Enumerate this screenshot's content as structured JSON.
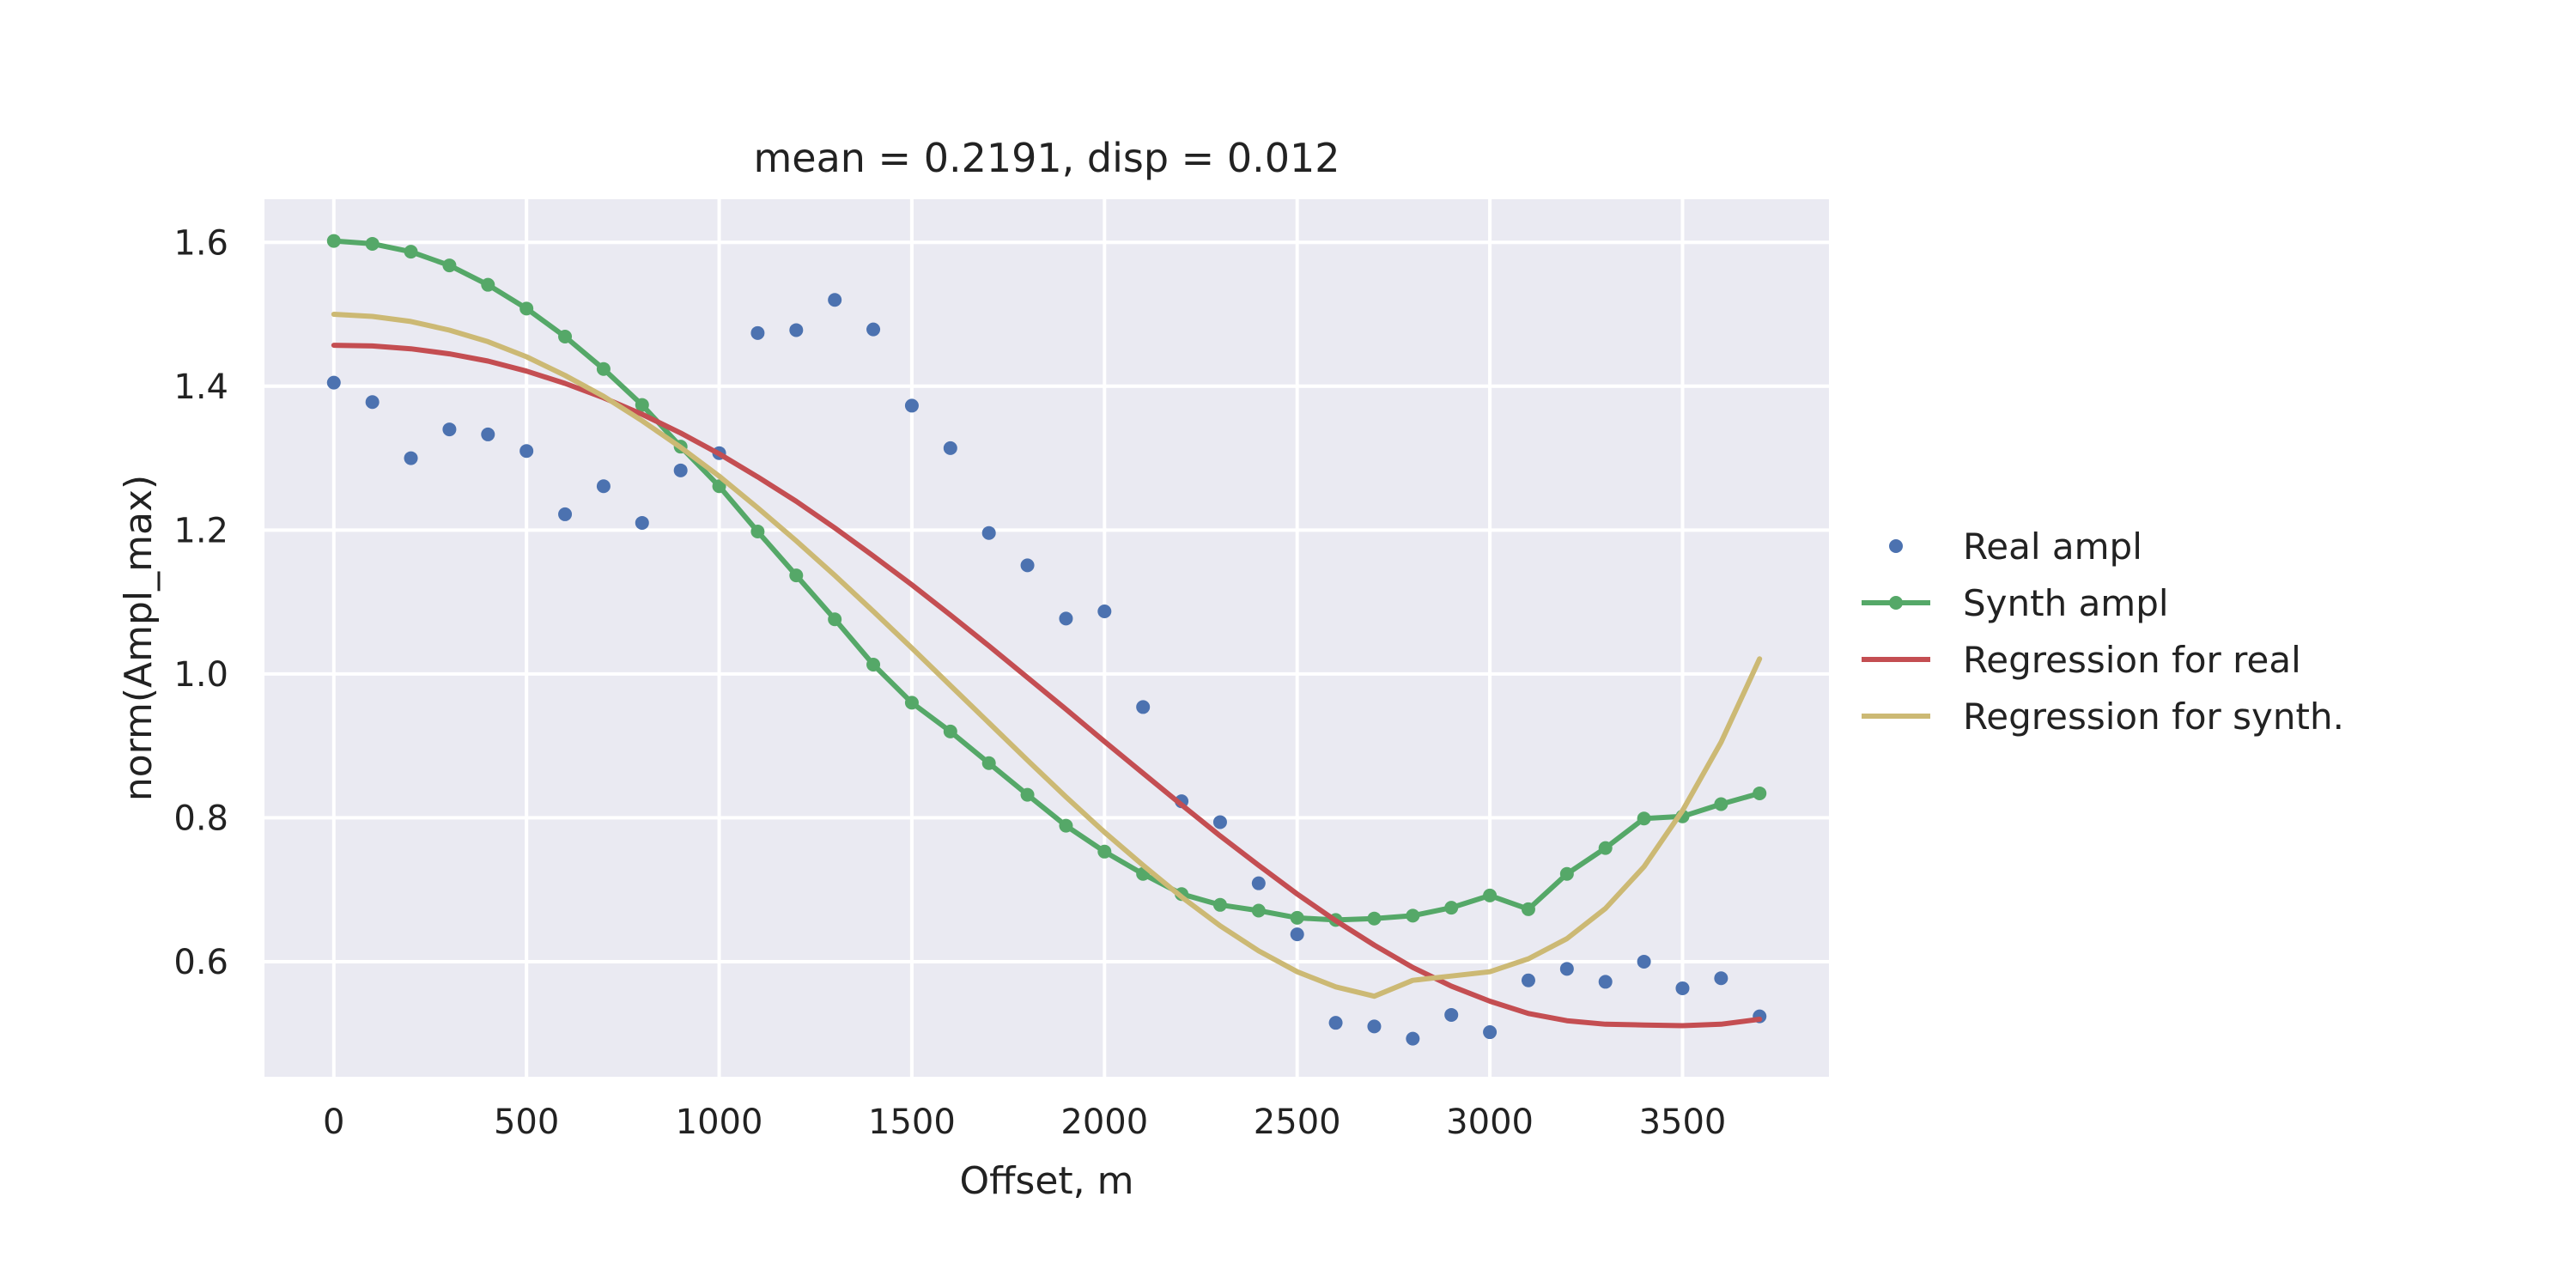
{
  "chart_data": {
    "type": "line",
    "title": "mean = 0.2191, disp = 0.012",
    "xlabel": "Offset, m",
    "ylabel": "norm(Ampl_max)",
    "xlim": [
      -180,
      3880
    ],
    "ylim": [
      0.44,
      1.66
    ],
    "xticks": [
      0,
      500,
      1000,
      1500,
      2000,
      2500,
      3000,
      3500
    ],
    "xtick_labels": [
      "0",
      "500",
      "1000",
      "1500",
      "2000",
      "2500",
      "3000",
      "3500"
    ],
    "yticks": [
      0.6,
      0.8,
      1.0,
      1.2,
      1.4,
      1.6
    ],
    "ytick_labels": [
      "0.6",
      "0.8",
      "1.0",
      "1.2",
      "1.4",
      "1.6"
    ],
    "grid": true,
    "legend_position": "right, outside plot",
    "x": [
      0,
      100,
      200,
      300,
      400,
      500,
      600,
      700,
      800,
      900,
      1000,
      1100,
      1200,
      1300,
      1400,
      1500,
      1600,
      1700,
      1800,
      1900,
      2000,
      2100,
      2200,
      2300,
      2400,
      2500,
      2600,
      2700,
      2800,
      2900,
      3000,
      3100,
      3200,
      3300,
      3400,
      3500,
      3600,
      3700
    ],
    "series": [
      {
        "name": "Real ampl",
        "style": "markers",
        "color": "#4c72b0",
        "values": [
          1.405,
          1.378,
          1.3,
          1.34,
          1.333,
          1.31,
          1.222,
          1.261,
          1.21,
          1.283,
          1.307,
          1.474,
          1.478,
          1.52,
          1.479,
          1.373,
          1.314,
          1.196,
          1.151,
          1.077,
          1.087,
          0.954,
          0.823,
          0.794,
          0.709,
          0.638,
          0.515,
          0.51,
          0.493,
          0.526,
          0.502,
          0.574,
          0.59,
          0.572,
          0.6,
          0.563,
          0.577,
          0.524
        ]
      },
      {
        "name": "Synth ampl",
        "style": "line+markers",
        "color": "#55a868",
        "values": [
          1.602,
          1.598,
          1.587,
          1.568,
          1.541,
          1.508,
          1.469,
          1.424,
          1.374,
          1.316,
          1.261,
          1.198,
          1.137,
          1.076,
          1.013,
          0.96,
          0.92,
          0.876,
          0.832,
          0.789,
          0.753,
          0.722,
          0.694,
          0.679,
          0.671,
          0.661,
          0.658,
          0.66,
          0.664,
          0.675,
          0.692,
          0.673,
          0.722,
          0.758,
          0.799,
          0.802,
          0.819,
          0.834
        ]
      },
      {
        "name": "Regression for real",
        "style": "line",
        "color": "#c44e52",
        "values": [
          1.457,
          1.456,
          1.452,
          1.445,
          1.435,
          1.421,
          1.404,
          1.384,
          1.361,
          1.335,
          1.306,
          1.274,
          1.24,
          1.203,
          1.164,
          1.124,
          1.082,
          1.039,
          0.995,
          0.951,
          0.906,
          0.862,
          0.818,
          0.775,
          0.734,
          0.694,
          0.657,
          0.623,
          0.592,
          0.566,
          0.545,
          0.528,
          0.518,
          0.513,
          0.512,
          0.511,
          0.513,
          0.52
        ]
      },
      {
        "name": "Regression for synth.",
        "style": "line",
        "color": "#ccb974",
        "values": [
          1.5,
          1.497,
          1.49,
          1.478,
          1.462,
          1.441,
          1.415,
          1.386,
          1.352,
          1.315,
          1.275,
          1.231,
          1.185,
          1.137,
          1.087,
          1.036,
          0.984,
          0.932,
          0.88,
          0.829,
          0.78,
          0.734,
          0.69,
          0.65,
          0.615,
          0.586,
          0.565,
          0.552,
          0.574,
          0.58,
          0.586,
          0.604,
          0.632,
          0.674,
          0.732,
          0.81,
          0.905,
          1.021
        ]
      }
    ]
  }
}
